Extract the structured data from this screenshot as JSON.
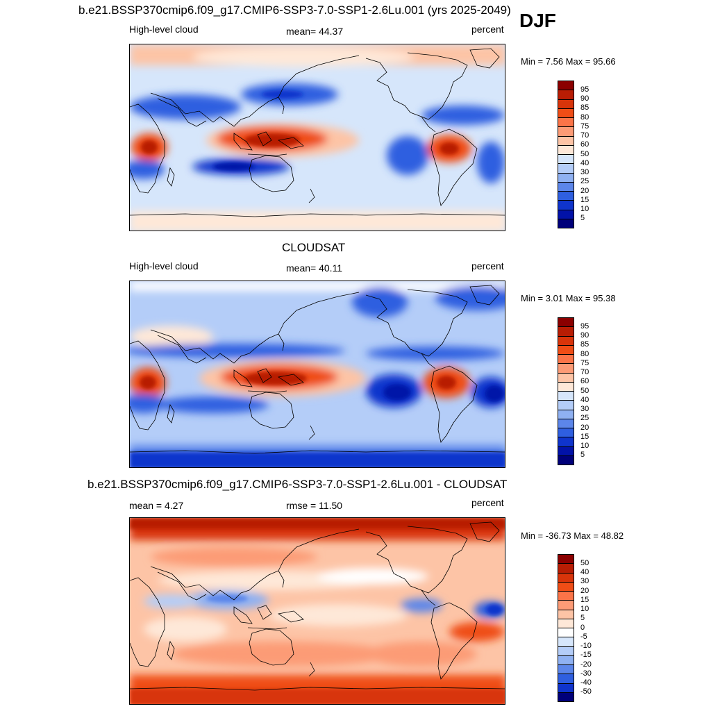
{
  "season": "DJF",
  "panels": [
    {
      "id": "model",
      "title": "b.e21.BSSP370cmip6.f09_g17.CMIP6-SSP3-7.0-SSP1-2.6Lu.001 (yrs 2025-2049)",
      "left_label": "High-level cloud",
      "center_label": "mean=  44.37",
      "right_label": "percent",
      "minmax": "Min =   7.56 Max =  95.66",
      "colorbar": {
        "labels": [
          "95",
          "90",
          "85",
          "80",
          "75",
          "70",
          "60",
          "50",
          "40",
          "30",
          "25",
          "20",
          "15",
          "10",
          "5"
        ],
        "colors": [
          "#8b0000",
          "#b81d04",
          "#d8340a",
          "#ef4d16",
          "#fb7448",
          "#fc9b76",
          "#fdc4a6",
          "#fee8d8",
          "#d6e6fb",
          "#b4cdf8",
          "#8fb1f2",
          "#5c86ea",
          "#2f5fe0",
          "#0f34cc",
          "#0212a8",
          "#00007a"
        ]
      }
    },
    {
      "id": "obs",
      "title": "CLOUDSAT",
      "left_label": "High-level cloud",
      "center_label": "mean=  40.11",
      "right_label": "percent",
      "minmax": "Min =   3.01 Max =  95.38",
      "colorbar": {
        "labels": [
          "95",
          "90",
          "85",
          "80",
          "75",
          "70",
          "60",
          "50",
          "40",
          "30",
          "25",
          "20",
          "15",
          "10",
          "5"
        ],
        "colors": [
          "#8b0000",
          "#b81d04",
          "#d8340a",
          "#ef4d16",
          "#fb7448",
          "#fc9b76",
          "#fdc4a6",
          "#fee8d8",
          "#d6e6fb",
          "#b4cdf8",
          "#8fb1f2",
          "#5c86ea",
          "#2f5fe0",
          "#0f34cc",
          "#0212a8",
          "#00007a"
        ]
      }
    },
    {
      "id": "diff",
      "title": "b.e21.BSSP370cmip6.f09_g17.CMIP6-SSP3-7.0-SSP1-2.6Lu.001 - CLOUDSAT",
      "left_label": "mean =   4.27",
      "center_label": "rmse =  11.50",
      "right_label": "percent",
      "minmax": "Min = -36.73 Max =  48.82",
      "colorbar": {
        "labels": [
          "50",
          "40",
          "30",
          "20",
          "15",
          "10",
          "5",
          "0",
          "-5",
          "-10",
          "-15",
          "-20",
          "-30",
          "-40",
          "-50"
        ],
        "colors": [
          "#8b0000",
          "#b81d04",
          "#d8340a",
          "#ef4d16",
          "#fb7448",
          "#fc9b76",
          "#fdc4a6",
          "#fee8d8",
          "#ffffff",
          "#d6e6fb",
          "#b4cdf8",
          "#8fb1f2",
          "#5c86ea",
          "#2f5fe0",
          "#0f34cc",
          "#00007a"
        ]
      }
    }
  ]
}
